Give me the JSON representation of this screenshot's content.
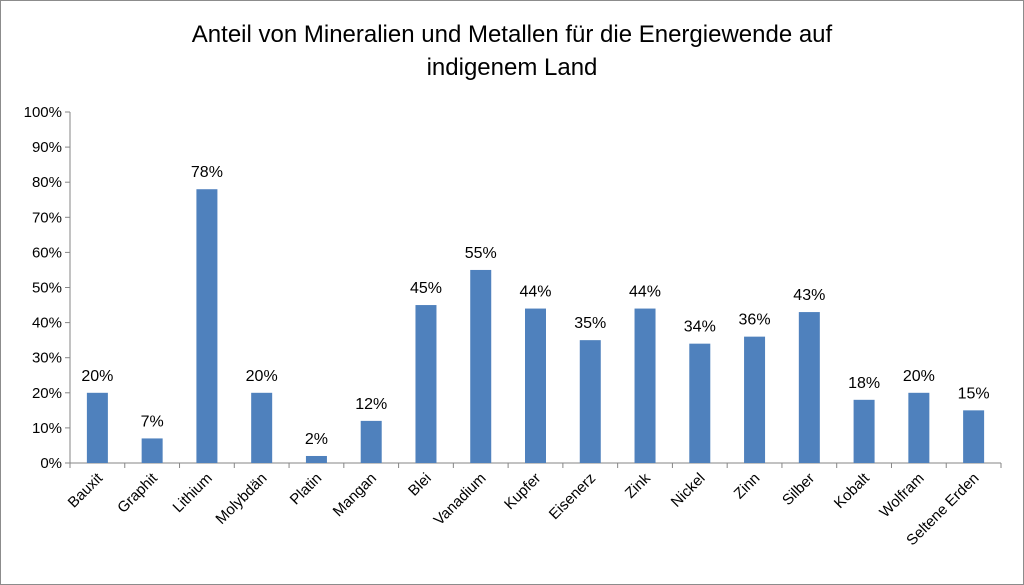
{
  "chart_data": {
    "type": "bar",
    "title_lines": [
      "Anteil von Mineralien und Metallen für die Energiewende auf",
      "indigenem Land"
    ],
    "categories": [
      "Bauxit",
      "Graphit",
      "Lithium",
      "Molybdän",
      "Platin",
      "Mangan",
      "Blei",
      "Vanadium",
      "Kupfer",
      "Eisenerz",
      "Zink",
      "Nickel",
      "Zinn",
      "Silber",
      "Kobalt",
      "Wolfram",
      "Seltene Erden"
    ],
    "values": [
      20,
      7,
      78,
      20,
      2,
      12,
      45,
      55,
      44,
      35,
      44,
      34,
      36,
      43,
      18,
      20,
      15
    ],
    "data_labels": [
      "20%",
      "7%",
      "78%",
      "20%",
      "2%",
      "12%",
      "45%",
      "55%",
      "44%",
      "35%",
      "44%",
      "34%",
      "36%",
      "43%",
      "18%",
      "20%",
      "15%"
    ],
    "y_ticks": [
      0,
      10,
      20,
      30,
      40,
      50,
      60,
      70,
      80,
      90,
      100
    ],
    "y_tick_labels": [
      "0%",
      "10%",
      "20%",
      "30%",
      "40%",
      "50%",
      "60%",
      "70%",
      "80%",
      "90%",
      "100%"
    ],
    "ylim": [
      0,
      100
    ],
    "bar_color": "#4f81bd",
    "grid": false,
    "legend": "none",
    "xlabel": "",
    "ylabel": ""
  }
}
